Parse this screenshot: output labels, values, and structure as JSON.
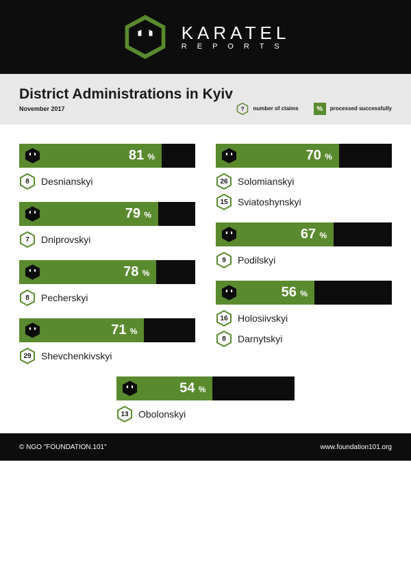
{
  "colors": {
    "accent": "#5a8a2e",
    "header": "#0d0d0d",
    "bar_bg": "#0d0d0d",
    "hex_stroke": "#5a8a2e"
  },
  "header": {
    "brand": "KARATEL",
    "sub": "R E P O R T S"
  },
  "title_band": {
    "title": "District Administrations in Kyiv",
    "date": "November 2017"
  },
  "legend": {
    "claims": "number\nof claims",
    "processed": "processed\nsuccessfully",
    "q": "?",
    "pct": "%"
  },
  "left": [
    {
      "pct": 81,
      "items": [
        {
          "n": 8,
          "name": "Desnianskyi"
        }
      ]
    },
    {
      "pct": 79,
      "items": [
        {
          "n": 7,
          "name": "Dniprovskyi"
        }
      ]
    },
    {
      "pct": 78,
      "items": [
        {
          "n": 8,
          "name": "Pecherskyi"
        }
      ]
    },
    {
      "pct": 71,
      "items": [
        {
          "n": 29,
          "name": "Shevchenkivskyi"
        }
      ]
    }
  ],
  "right": [
    {
      "pct": 70,
      "items": [
        {
          "n": 26,
          "name": "Solomianskyi"
        },
        {
          "n": 15,
          "name": "Sviatoshynskyi"
        }
      ]
    },
    {
      "pct": 67,
      "items": [
        {
          "n": 9,
          "name": "Podilskyi"
        }
      ]
    },
    {
      "pct": 56,
      "items": [
        {
          "n": 16,
          "name": "Holosiivskyi"
        },
        {
          "n": 8,
          "name": "Darnytskyi"
        }
      ]
    }
  ],
  "center": {
    "pct": 54,
    "items": [
      {
        "n": 13,
        "name": "Obolonskyi"
      }
    ]
  },
  "footer": {
    "left": "© NGO \"FOUNDATION.101\"",
    "right": "www.foundation101.org"
  }
}
